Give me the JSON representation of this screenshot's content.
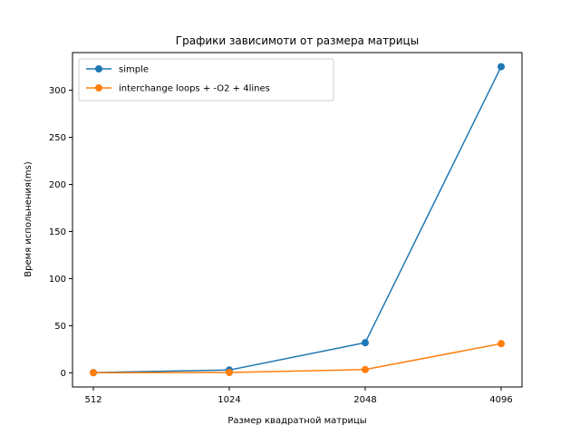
{
  "chart_data": {
    "type": "line",
    "title": "Графики зависимоти от размера матрицы",
    "xlabel": "Размер квадратной матрицы",
    "ylabel": "Время испольнения(ms)",
    "categories": [
      "512",
      "1024",
      "2048",
      "4096"
    ],
    "ylim": [
      -15,
      340
    ],
    "yticks": [
      0,
      50,
      100,
      150,
      200,
      250,
      300
    ],
    "legend_position": "upper-left",
    "grid": false,
    "series": [
      {
        "name": "simple",
        "color": "#1f77b4",
        "marker": "circle",
        "values": [
          0.3,
          3,
          32,
          325
        ]
      },
      {
        "name": "interchange loops + -O2 + 4lines",
        "color": "#ff7f0e",
        "marker": "circle",
        "values": [
          0.1,
          0.4,
          3.5,
          31
        ]
      }
    ]
  }
}
